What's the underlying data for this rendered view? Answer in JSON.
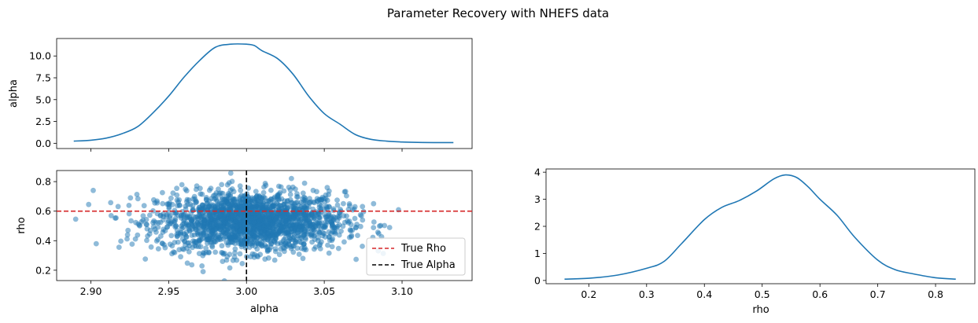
{
  "figure": {
    "title": "Parameter Recovery with NHEFS data"
  },
  "colors": {
    "series": "#1f77b4",
    "true_rho": "#d62728",
    "true_alpha": "#000000"
  },
  "chart_data": [
    {
      "id": "alpha-kde",
      "type": "line",
      "title": "",
      "xlabel": "",
      "ylabel": "alpha",
      "xlim": [
        2.878,
        3.145
      ],
      "ylim": [
        -0.6,
        12.0
      ],
      "xticks": [
        2.9,
        2.95,
        3.0,
        3.05,
        3.1
      ],
      "xtick_labels_visible": false,
      "yticks": [
        0.0,
        2.5,
        5.0,
        7.5,
        10.0
      ],
      "ytick_labels": [
        "0.0",
        "2.5",
        "5.0",
        "7.5",
        "10.0"
      ],
      "series": [
        {
          "x": [
            2.889,
            2.9,
            2.91,
            2.92,
            2.93,
            2.94,
            2.95,
            2.96,
            2.97,
            2.98,
            2.99,
            3.0,
            3.005,
            3.01,
            3.02,
            3.03,
            3.04,
            3.05,
            3.06,
            3.07,
            3.08,
            3.09,
            3.1,
            3.11,
            3.12,
            3.133
          ],
          "y": [
            0.25,
            0.35,
            0.6,
            1.1,
            1.9,
            3.5,
            5.4,
            7.6,
            9.5,
            11.0,
            11.35,
            11.35,
            11.2,
            10.6,
            9.7,
            7.9,
            5.4,
            3.4,
            2.2,
            1.0,
            0.45,
            0.25,
            0.15,
            0.1,
            0.08,
            0.08
          ]
        }
      ]
    },
    {
      "id": "joint-scatter",
      "type": "scatter",
      "title": "",
      "xlabel": "alpha",
      "ylabel": "rho",
      "xlim": [
        2.878,
        3.145
      ],
      "ylim": [
        0.13,
        0.875
      ],
      "xticks": [
        2.9,
        2.95,
        3.0,
        3.05,
        3.1
      ],
      "xtick_labels": [
        "2.90",
        "2.95",
        "3.00",
        "3.05",
        "3.10"
      ],
      "yticks": [
        0.2,
        0.4,
        0.6,
        0.8
      ],
      "ytick_labels": [
        "0.2",
        "0.4",
        "0.6",
        "0.8"
      ],
      "points_summary": {
        "n": 2000,
        "alpha_mean": 3.003,
        "alpha_sd": 0.03,
        "rho_mean": 0.53,
        "rho_sd": 0.1
      },
      "reference_lines": [
        {
          "orientation": "horizontal",
          "value": 0.6,
          "label": "True Rho",
          "color": "#d62728",
          "style": "dashed"
        },
        {
          "orientation": "vertical",
          "value": 3.0,
          "label": "True Alpha",
          "color": "#000000",
          "style": "dashed"
        }
      ],
      "legend": {
        "position": "lower right",
        "entries": [
          "True Rho",
          "True Alpha"
        ]
      }
    },
    {
      "id": "rho-kde",
      "type": "line",
      "title": "",
      "xlabel": "rho",
      "ylabel": "",
      "xlim": [
        0.126,
        0.868
      ],
      "ylim": [
        -0.12,
        4.12
      ],
      "xticks": [
        0.2,
        0.3,
        0.4,
        0.5,
        0.6,
        0.7,
        0.8
      ],
      "xtick_labels": [
        "0.2",
        "0.3",
        "0.4",
        "0.5",
        "0.6",
        "0.7",
        "0.8"
      ],
      "yticks": [
        0,
        1,
        2,
        3,
        4
      ],
      "ytick_labels": [
        "0",
        "1",
        "2",
        "3",
        "4"
      ],
      "series": [
        {
          "x": [
            0.158,
            0.2,
            0.25,
            0.3,
            0.33,
            0.36,
            0.4,
            0.43,
            0.46,
            0.49,
            0.52,
            0.54,
            0.56,
            0.58,
            0.6,
            0.63,
            0.66,
            0.7,
            0.73,
            0.76,
            0.8,
            0.835
          ],
          "y": [
            0.05,
            0.08,
            0.2,
            0.45,
            0.7,
            1.35,
            2.25,
            2.7,
            2.95,
            3.3,
            3.75,
            3.9,
            3.8,
            3.45,
            3.0,
            2.4,
            1.6,
            0.75,
            0.4,
            0.25,
            0.1,
            0.05
          ]
        }
      ]
    }
  ]
}
